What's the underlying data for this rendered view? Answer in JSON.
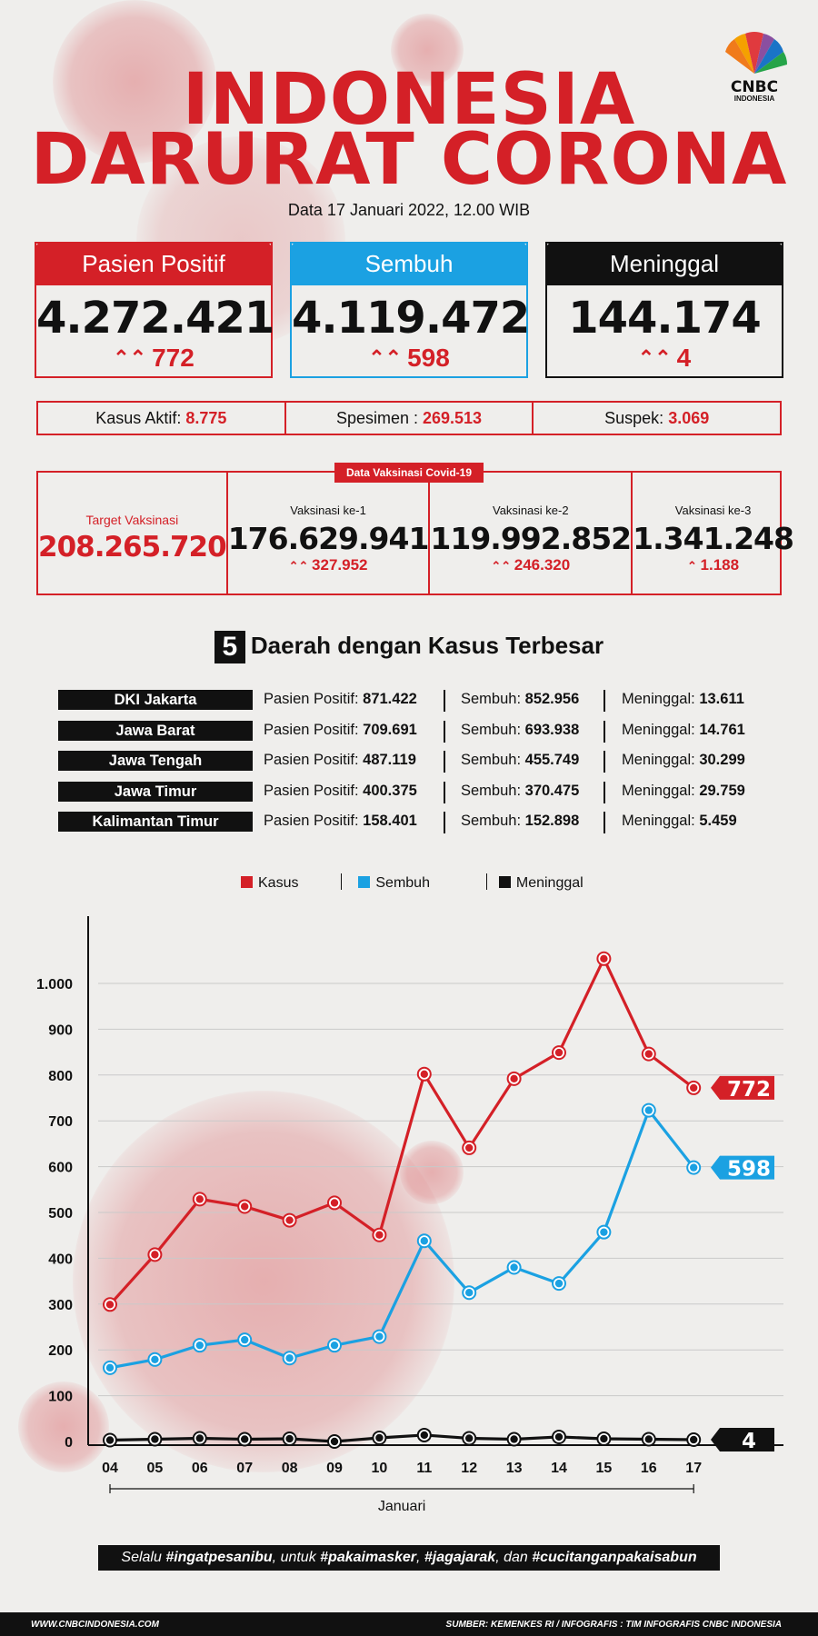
{
  "header": {
    "title_line1": "INDONESIA",
    "title_line2": "DARURAT CORONA",
    "date": "Data 17  Januari 2022, 12.00 WIB",
    "logo_text": "CNBC",
    "logo_sub": "INDONESIA"
  },
  "colors": {
    "red": "#d42027",
    "blue": "#1ba1e2",
    "black": "#111111"
  },
  "cards": [
    {
      "label": "Pasien Positif",
      "value": "4.272.421",
      "delta": "772",
      "color": "#d42027"
    },
    {
      "label": "Sembuh",
      "value": "4.119.472",
      "delta": "598",
      "color": "#1ba1e2"
    },
    {
      "label": "Meninggal",
      "value": "144.174",
      "delta": "4",
      "color": "#111111"
    }
  ],
  "infobar": [
    {
      "label": "Kasus Aktif:",
      "value": "8.775"
    },
    {
      "label": "Spesimen :",
      "value": "269.513"
    },
    {
      "label": "Suspek:",
      "value": "3.069"
    }
  ],
  "vaccination": {
    "tag": "Data Vaksinasi Covid-19",
    "target_label": "Target Vaksinasi",
    "target_value": "208.265.720",
    "doses": [
      {
        "label": "Vaksinasi ke-1",
        "value": "176.629.941",
        "delta": "327.952"
      },
      {
        "label": "Vaksinasi ke-2",
        "value": "119.992.852",
        "delta": "246.320"
      },
      {
        "label": "Vaksinasi ke-3",
        "value": "1.341.248",
        "delta": "1.188"
      }
    ]
  },
  "regions": {
    "number": "5",
    "title": "Daerah dengan Kasus Terbesar",
    "pos_label": "Pasien Positif:",
    "rec_label": "Sembuh:",
    "death_label": "Meninggal:",
    "rows": [
      {
        "name": "DKI Jakarta",
        "positif": "871.422",
        "sembuh": "852.956",
        "meninggal": "13.611"
      },
      {
        "name": "Jawa Barat",
        "positif": "709.691",
        "sembuh": "693.938",
        "meninggal": "14.761"
      },
      {
        "name": "Jawa Tengah",
        "positif": "487.119",
        "sembuh": "455.749",
        "meninggal": "30.299"
      },
      {
        "name": "Jawa Timur",
        "positif": "400.375",
        "sembuh": "370.475",
        "meninggal": "29.759"
      },
      {
        "name": "Kalimantan Timur",
        "positif": "158.401",
        "sembuh": "152.898",
        "meninggal": "5.459"
      }
    ]
  },
  "chart_data": {
    "type": "line",
    "categories": [
      "04",
      "05",
      "06",
      "07",
      "08",
      "09",
      "10",
      "11",
      "12",
      "13",
      "14",
      "15",
      "16",
      "17"
    ],
    "xlabel": "Januari",
    "ylabel": "",
    "ylim": [
      0,
      1000
    ],
    "yticks": [
      0,
      100,
      200,
      300,
      400,
      500,
      600,
      700,
      800,
      900,
      1000
    ],
    "ytick_labels": [
      "0",
      "100",
      "200",
      "300",
      "400",
      "500",
      "600",
      "700",
      "800",
      "900",
      "1.000"
    ],
    "grid": true,
    "legend": "top-center",
    "series": [
      {
        "name": "Kasus",
        "color": "#d42027",
        "values": [
          299,
          408,
          529,
          513,
          483,
          521,
          451,
          802,
          641,
          792,
          849,
          1054,
          846,
          772
        ],
        "end_label": "772"
      },
      {
        "name": "Sembuh",
        "color": "#1ba1e2",
        "values": [
          161,
          179,
          210,
          222,
          182,
          210,
          229,
          438,
          325,
          380,
          345,
          457,
          723,
          598
        ],
        "end_label": "598"
      },
      {
        "name": "Meninggal",
        "color": "#111111",
        "values": [
          3,
          5,
          7,
          5,
          6,
          0,
          8,
          14,
          7,
          5,
          10,
          6,
          5,
          4
        ],
        "end_label": "4"
      }
    ]
  },
  "hashtags": {
    "prefix": "Selalu ",
    "t1": "#ingatpesanibu",
    "m1": ", untuk ",
    "t2": "#pakaimasker",
    "m2": ", ",
    "t3": "#jagajarak",
    "m3": ", dan ",
    "t4": "#cucitanganpakaisabun"
  },
  "footer": {
    "left": "WWW.CNBCINDONESIA.COM",
    "right": "SUMBER: KEMENKES RI / INFOGRAFIS : TIM INFOGRAFIS CNBC INDONESIA"
  }
}
